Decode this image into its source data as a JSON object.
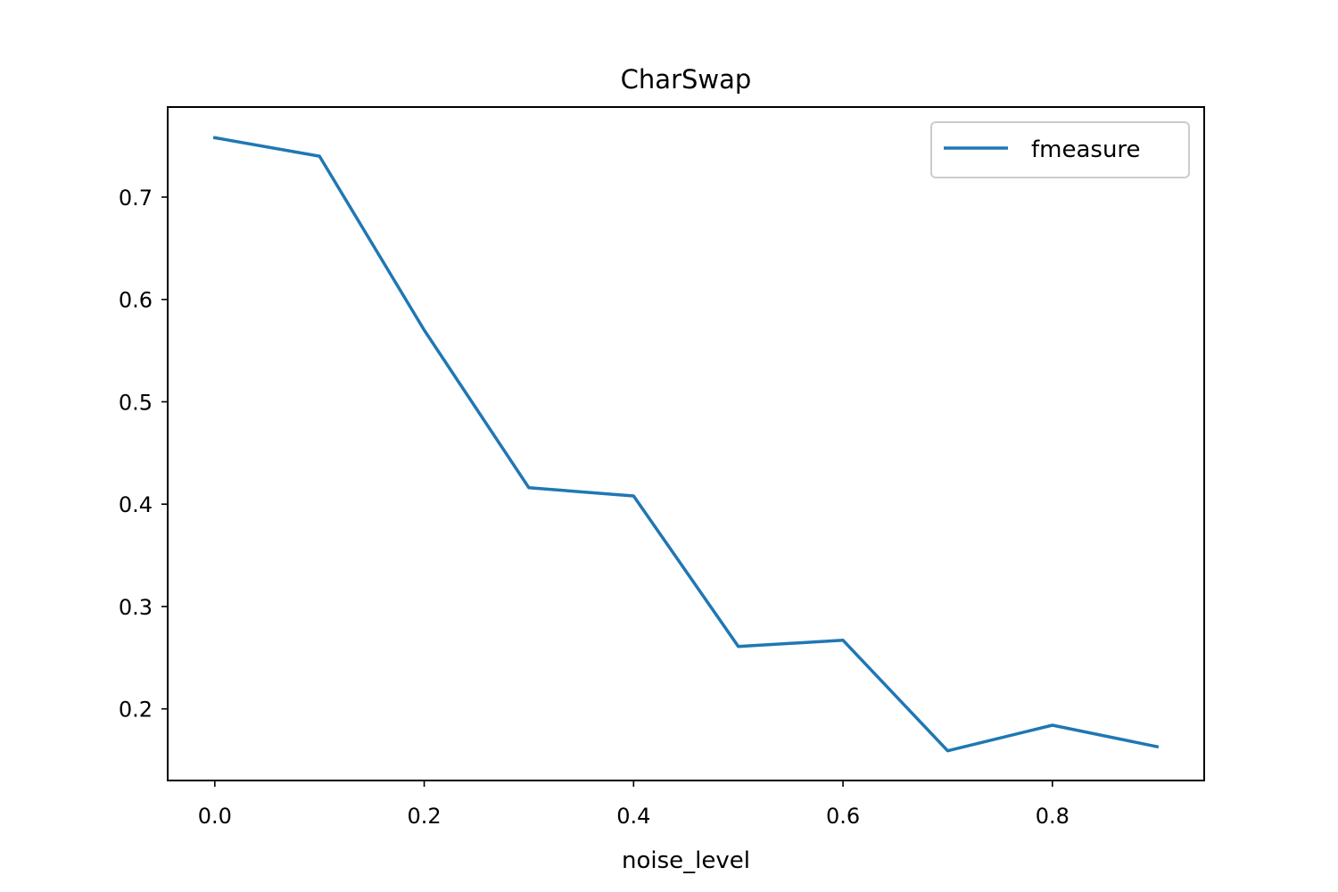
{
  "chart_data": {
    "type": "line",
    "title": "CharSwap",
    "xlabel": "noise_level",
    "ylabel": "",
    "x": [
      0.0,
      0.1,
      0.2,
      0.3,
      0.4,
      0.5,
      0.6,
      0.7,
      0.8,
      0.9
    ],
    "series": [
      {
        "name": "fmeasure",
        "values": [
          0.758,
          0.74,
          0.57,
          0.416,
          0.408,
          0.261,
          0.267,
          0.159,
          0.184,
          0.163
        ],
        "color": "#1f77b4"
      }
    ],
    "xlim": [
      -0.045,
      0.945
    ],
    "ylim": [
      0.13,
      0.788
    ],
    "xticks": [
      0.0,
      0.2,
      0.4,
      0.6,
      0.8
    ],
    "xtick_labels": [
      "0.0",
      "0.2",
      "0.4",
      "0.6",
      "0.8"
    ],
    "yticks": [
      0.2,
      0.3,
      0.4,
      0.5,
      0.6,
      0.7
    ],
    "ytick_labels": [
      "0.2",
      "0.3",
      "0.4",
      "0.5",
      "0.6",
      "0.7"
    ],
    "grid": false,
    "legend_position": "top-right"
  }
}
